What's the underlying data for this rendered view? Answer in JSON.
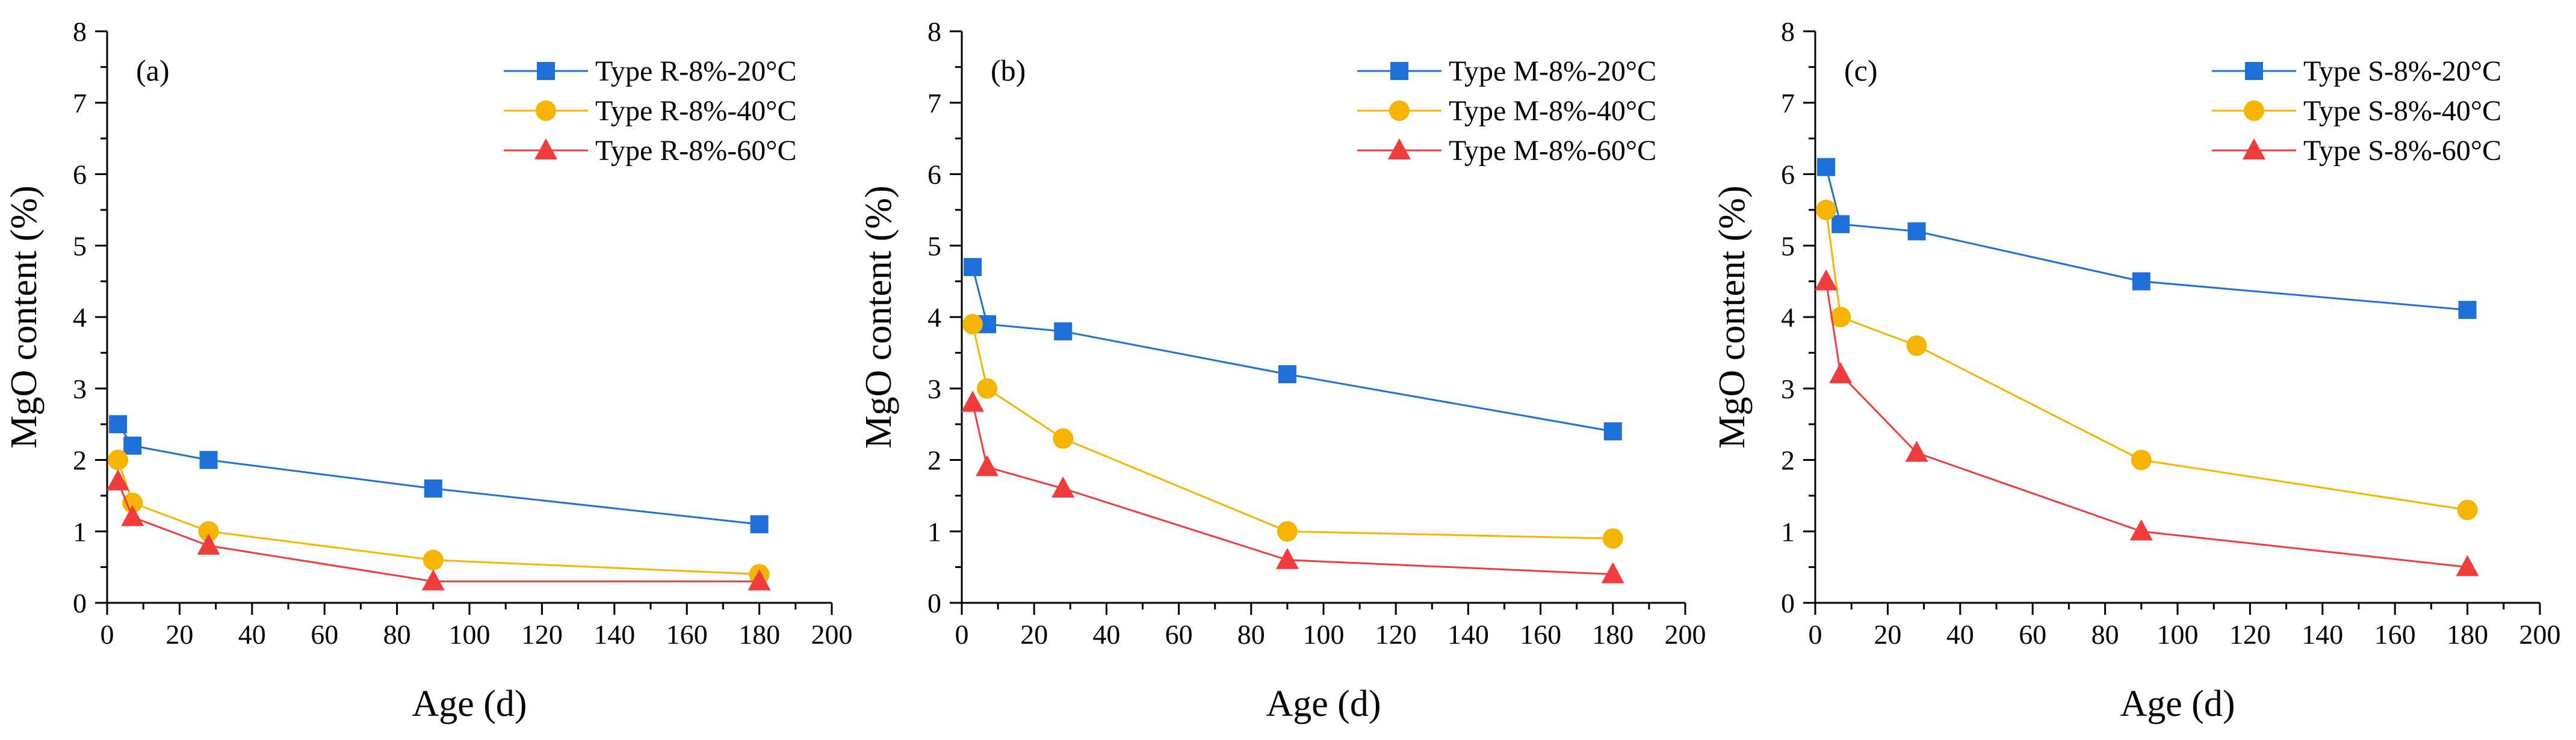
{
  "colors": {
    "series_20": "#1f6fd8",
    "series_40": "#f5b400",
    "series_60": "#f03c3c",
    "axis": "#000000"
  },
  "chart_data": [
    {
      "type": "line",
      "panel_label": "(a)",
      "title": "",
      "xlabel": "Age (d)",
      "ylabel": "MgO content (%)",
      "xlim": [
        0,
        200
      ],
      "ylim": [
        0,
        8
      ],
      "xticks": [
        0,
        20,
        40,
        60,
        80,
        100,
        120,
        140,
        160,
        180,
        200
      ],
      "yticks": [
        0,
        1,
        2,
        3,
        4,
        5,
        6,
        7,
        8
      ],
      "legend_position": "top-right",
      "x": [
        3,
        7,
        28,
        90,
        180
      ],
      "series": [
        {
          "name": "Type R-8%-20°C",
          "marker": "square",
          "color_key": "series_20",
          "values": [
            2.5,
            2.2,
            2.0,
            1.6,
            1.1
          ]
        },
        {
          "name": "Type R-8%-40°C",
          "marker": "circle",
          "color_key": "series_40",
          "values": [
            2.0,
            1.4,
            1.0,
            0.6,
            0.4
          ]
        },
        {
          "name": "Type R-8%-60°C",
          "marker": "triangle",
          "color_key": "series_60",
          "values": [
            1.7,
            1.2,
            0.8,
            0.3,
            0.3
          ]
        }
      ]
    },
    {
      "type": "line",
      "panel_label": "(b)",
      "title": "",
      "xlabel": "Age (d)",
      "ylabel": "MgO content (%)",
      "xlim": [
        0,
        200
      ],
      "ylim": [
        0,
        8
      ],
      "xticks": [
        0,
        20,
        40,
        60,
        80,
        100,
        120,
        140,
        160,
        180,
        200
      ],
      "yticks": [
        0,
        1,
        2,
        3,
        4,
        5,
        6,
        7,
        8
      ],
      "legend_position": "top-right",
      "x": [
        3,
        7,
        28,
        90,
        180
      ],
      "series": [
        {
          "name": "Type M-8%-20°C",
          "marker": "square",
          "color_key": "series_20",
          "values": [
            4.7,
            3.9,
            3.8,
            3.2,
            2.4
          ]
        },
        {
          "name": "Type M-8%-40°C",
          "marker": "circle",
          "color_key": "series_40",
          "values": [
            3.9,
            3.0,
            2.3,
            1.0,
            0.9
          ]
        },
        {
          "name": "Type M-8%-60°C",
          "marker": "triangle",
          "color_key": "series_60",
          "values": [
            2.8,
            1.9,
            1.6,
            0.6,
            0.4
          ]
        }
      ]
    },
    {
      "type": "line",
      "panel_label": "(c)",
      "title": "",
      "xlabel": "Age (d)",
      "ylabel": "MgO content (%)",
      "xlim": [
        0,
        200
      ],
      "ylim": [
        0,
        8
      ],
      "xticks": [
        0,
        20,
        40,
        60,
        80,
        100,
        120,
        140,
        160,
        180,
        200
      ],
      "yticks": [
        0,
        1,
        2,
        3,
        4,
        5,
        6,
        7,
        8
      ],
      "legend_position": "top-right",
      "x": [
        3,
        7,
        28,
        90,
        180
      ],
      "series": [
        {
          "name": "Type S-8%-20°C",
          "marker": "square",
          "color_key": "series_20",
          "values": [
            6.1,
            5.3,
            5.2,
            4.5,
            4.1
          ]
        },
        {
          "name": "Type S-8%-40°C",
          "marker": "circle",
          "color_key": "series_40",
          "values": [
            5.5,
            4.0,
            3.6,
            2.0,
            1.3
          ]
        },
        {
          "name": "Type S-8%-60°C",
          "marker": "triangle",
          "color_key": "series_60",
          "values": [
            4.5,
            3.2,
            2.1,
            1.0,
            0.5
          ]
        }
      ]
    }
  ]
}
